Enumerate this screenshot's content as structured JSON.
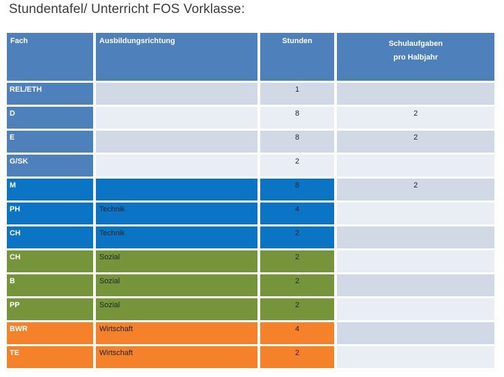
{
  "title": "Stundentafel/ Unterricht FOS Vorklasse:",
  "table": {
    "headers": {
      "fach": "Fach",
      "richtung": "Ausbildungsrichtung",
      "stunden": "Stunden",
      "schulaufgaben_line1": "Schulaufgaben",
      "schulaufgaben_line2": "pro Halbjahr"
    },
    "rows": [
      {
        "fach": "REL/ETH",
        "richtung": "",
        "stunden": "1",
        "schulaufgaben": "",
        "theme": "default"
      },
      {
        "fach": "D",
        "richtung": "",
        "stunden": "8",
        "schulaufgaben": "2",
        "theme": "default"
      },
      {
        "fach": "E",
        "richtung": "",
        "stunden": "8",
        "schulaufgaben": "2",
        "theme": "default"
      },
      {
        "fach": "G/SK",
        "richtung": "",
        "stunden": "2",
        "schulaufgaben": "",
        "theme": "default"
      },
      {
        "fach": "M",
        "richtung": "",
        "stunden": "8",
        "schulaufgaben": "2",
        "theme": "blue"
      },
      {
        "fach": "PH",
        "richtung": "Technik",
        "stunden": "4",
        "schulaufgaben": "",
        "theme": "blue"
      },
      {
        "fach": "CH",
        "richtung": "Technik",
        "stunden": "2",
        "schulaufgaben": "",
        "theme": "blue"
      },
      {
        "fach": "CH",
        "richtung": "Sozial",
        "stunden": "2",
        "schulaufgaben": "",
        "theme": "green"
      },
      {
        "fach": "B",
        "richtung": "Sozial",
        "stunden": "2",
        "schulaufgaben": "",
        "theme": "green"
      },
      {
        "fach": "PP",
        "richtung": "Sozial",
        "stunden": "2",
        "schulaufgaben": "",
        "theme": "green"
      },
      {
        "fach": "BWR",
        "richtung": "Wirtschaft",
        "stunden": "4",
        "schulaufgaben": "",
        "theme": "orange"
      },
      {
        "fach": "TE",
        "richtung": "Wirtschaft",
        "stunden": "2",
        "schulaufgaben": "",
        "theme": "orange"
      }
    ]
  },
  "colors": {
    "title_color": "#3b3b3b",
    "header_blue": "#4e81bb",
    "accent_blue": "#0b74c4",
    "accent_green": "#76953b",
    "accent_orange": "#f5812a",
    "row_shade_dark": "#d2d9e6",
    "row_shade_light": "#e9edf4",
    "text_dark": "#20242b"
  }
}
